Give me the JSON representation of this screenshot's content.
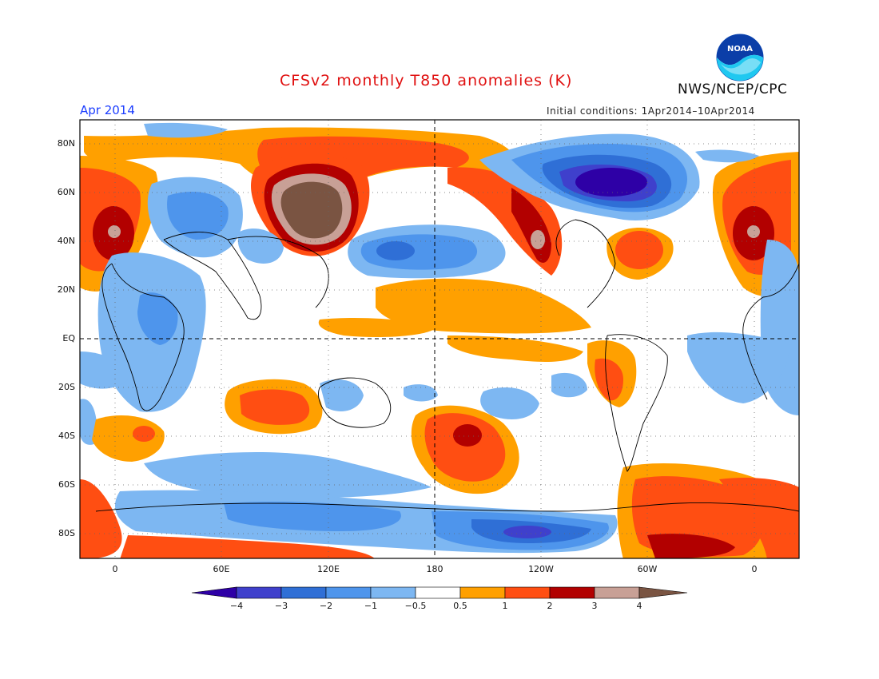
{
  "header": {
    "title": "CFSv2 monthly T850 anomalies (K)",
    "agency": "NWS/NCEP/CPC",
    "valid_month": "Apr 2014",
    "initial_conditions": "Initial conditions: 1Apr2014–10Apr2014",
    "logo_text": "NOAA"
  },
  "map": {
    "projection": "cylindrical equidistant",
    "lat_labels": [
      "80N",
      "60N",
      "40N",
      "20N",
      "EQ",
      "20S",
      "40S",
      "60S",
      "80S"
    ],
    "lon_labels": [
      "0",
      "60E",
      "120E",
      "180",
      "120W",
      "60W",
      "0"
    ],
    "grid": "dotted",
    "reference_lines": [
      "EQ",
      "180"
    ]
  },
  "colorbar": {
    "labels": [
      "−4",
      "−3",
      "−2",
      "−1",
      "−0.5",
      "0.5",
      "1",
      "2",
      "3",
      "4"
    ],
    "colors": [
      "#2e00a6",
      "#3f40cc",
      "#2f6fd6",
      "#4e95ec",
      "#7db7f2",
      "#ffffff",
      "#ffa000",
      "#ff4e12",
      "#b20000",
      "#c8a096",
      "#7a5442"
    ]
  }
}
